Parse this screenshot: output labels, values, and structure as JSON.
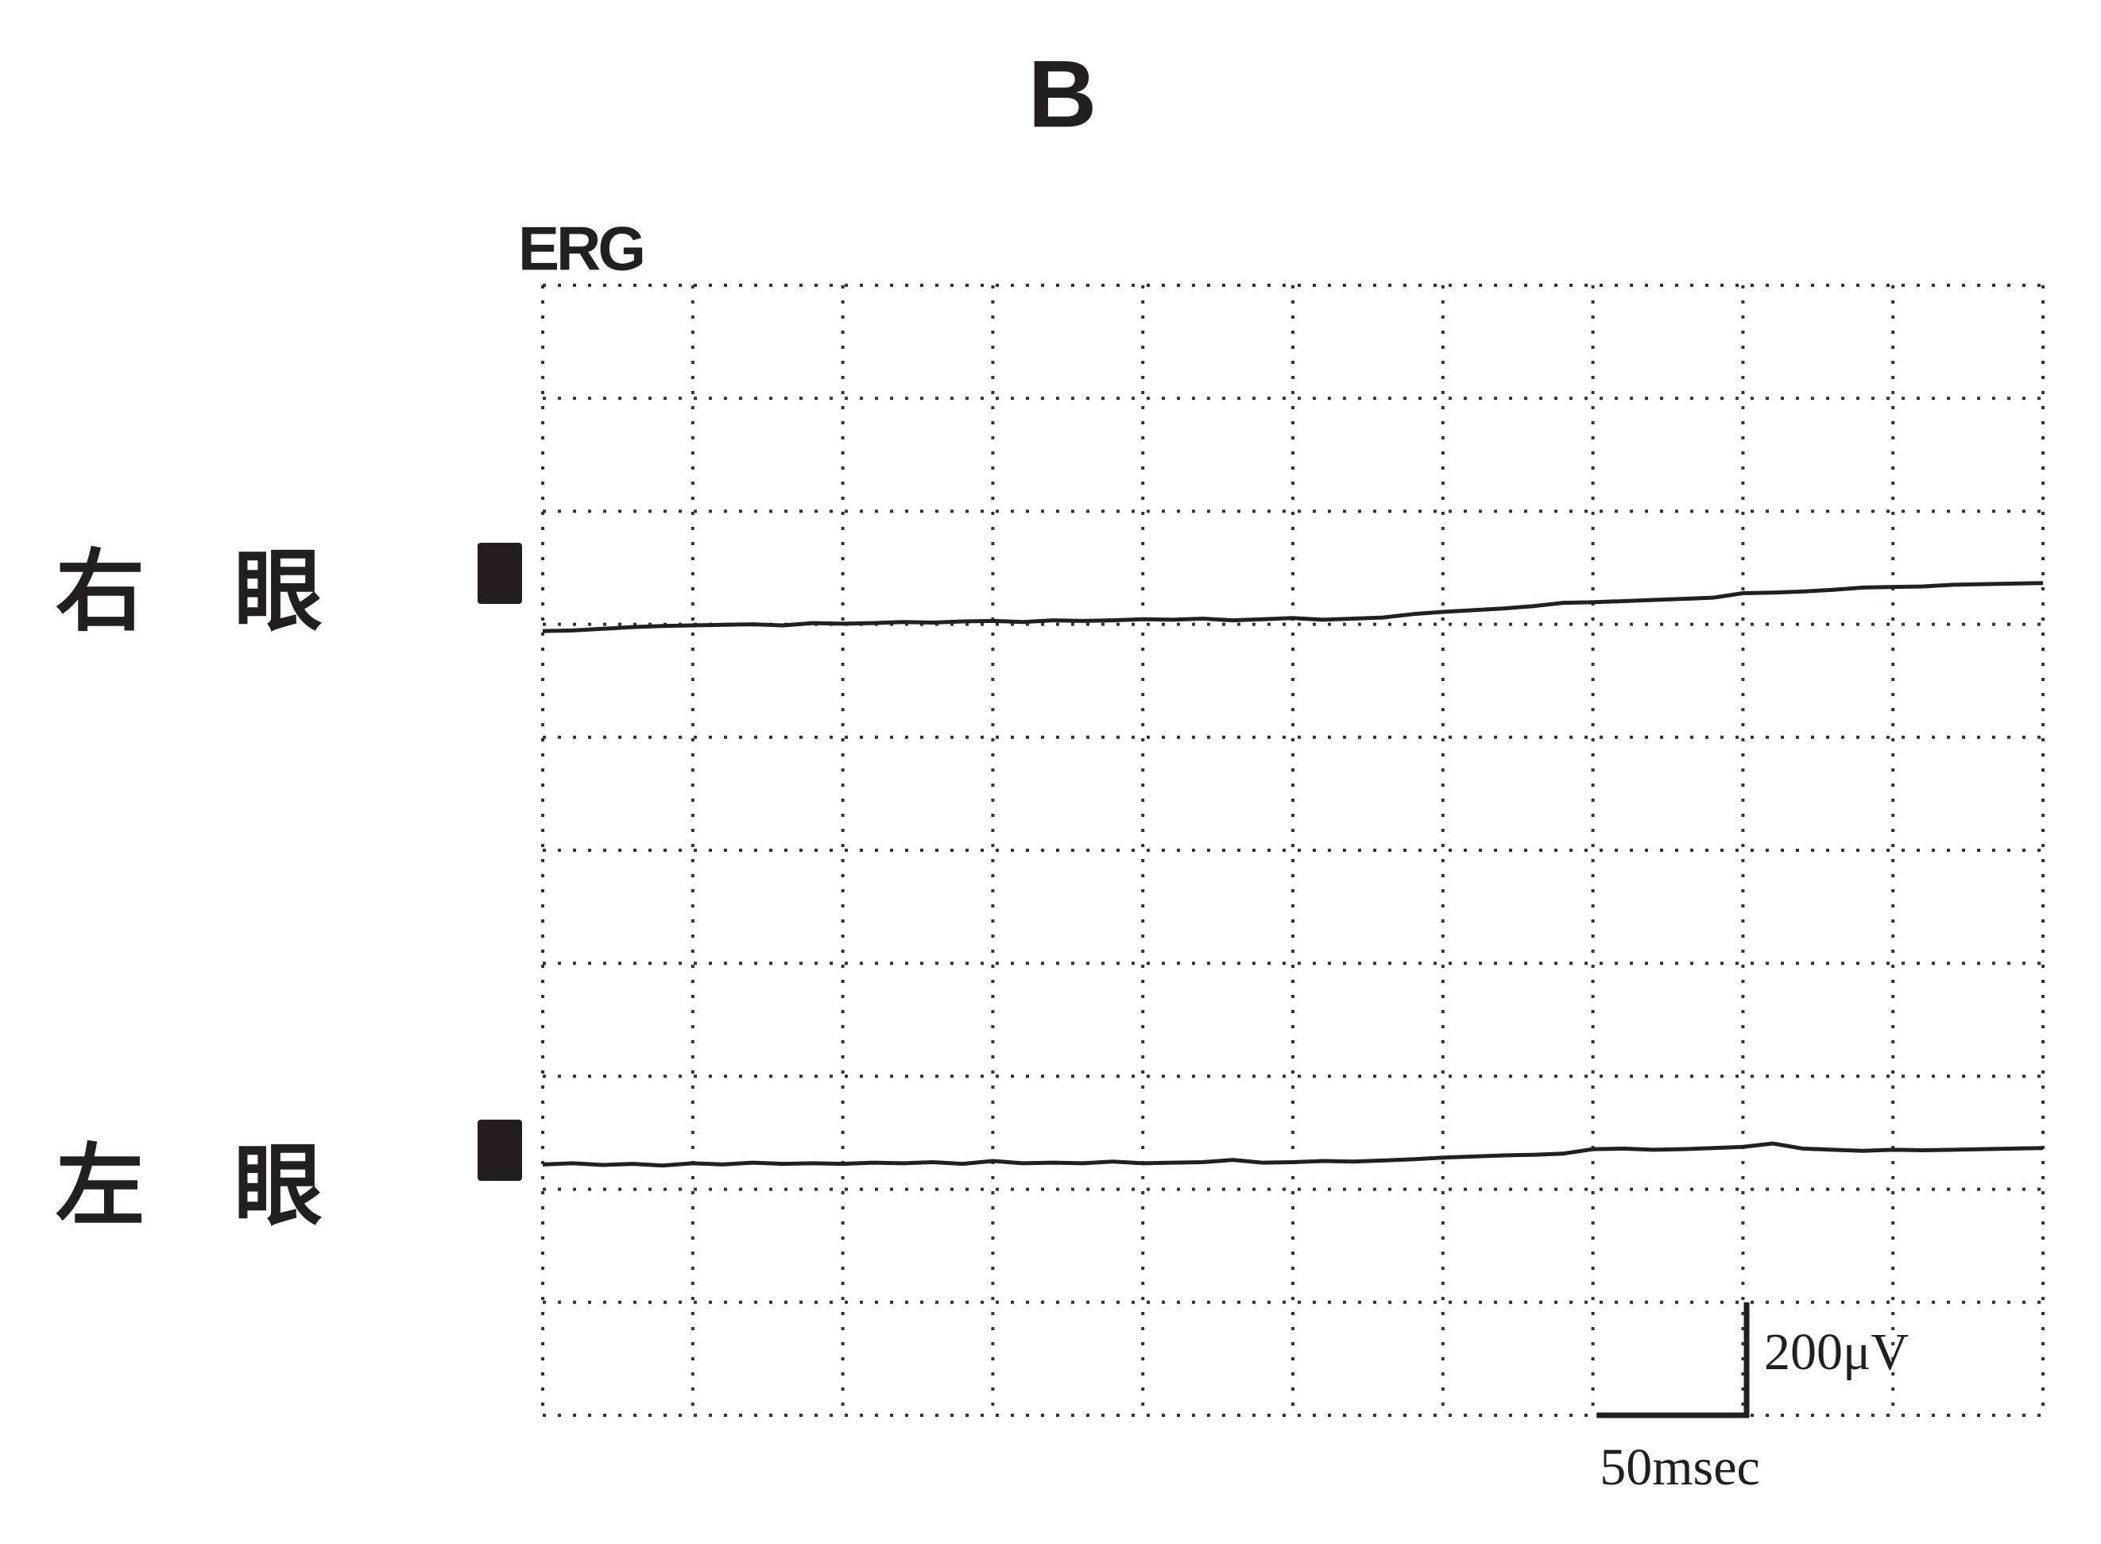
{
  "chart_data": {
    "type": "line",
    "title": "B",
    "subtitle": "ERG",
    "x": [
      0,
      10,
      20,
      30,
      40,
      50,
      60,
      70,
      80,
      90,
      100,
      110,
      120,
      130,
      140,
      150,
      160,
      170,
      180,
      190,
      200,
      210,
      220,
      230,
      240,
      250,
      260,
      270,
      280,
      290,
      300,
      310,
      320,
      330,
      340,
      350,
      360,
      370,
      380,
      390,
      400,
      410,
      420,
      430,
      440,
      450,
      460,
      470,
      480,
      490,
      500
    ],
    "series": [
      {
        "name": "右　眼",
        "color": "#231f20",
        "values": [
          1388,
          1389,
          1392,
          1395,
          1397,
          1398,
          1399,
          1400,
          1398,
          1402,
          1401,
          1402,
          1404,
          1403,
          1405,
          1406,
          1404,
          1407,
          1406,
          1407,
          1409,
          1408,
          1410,
          1407,
          1409,
          1411,
          1408,
          1410,
          1412,
          1418,
          1422,
          1425,
          1428,
          1432,
          1438,
          1439,
          1441,
          1443,
          1445,
          1447,
          1455,
          1456,
          1458,
          1461,
          1465,
          1466,
          1467,
          1470,
          1471,
          1472,
          1473
        ]
      },
      {
        "name": "左　眼",
        "color": "#231f20",
        "values": [
          444,
          446,
          443,
          445,
          442,
          446,
          444,
          447,
          445,
          446,
          445,
          447,
          446,
          448,
          445,
          450,
          446,
          447,
          446,
          449,
          446,
          447,
          448,
          452,
          447,
          448,
          450,
          449,
          451,
          453,
          456,
          458,
          460,
          461,
          463,
          471,
          472,
          470,
          471,
          473,
          475,
          481,
          472,
          470,
          468,
          470,
          469,
          470,
          471,
          472,
          473
        ]
      }
    ],
    "xlim": [
      0,
      500
    ],
    "ylim": [
      0,
      2000
    ],
    "xticks": [
      0,
      50,
      100,
      150,
      200,
      250,
      300,
      350,
      400,
      450,
      500
    ],
    "yticks": [
      0,
      200,
      400,
      600,
      800,
      1000,
      1200,
      1400,
      1600,
      1800,
      2000
    ],
    "grid": true,
    "scale_bar": {
      "x": 50,
      "y": 200,
      "x_label": "50msec",
      "y_label": "200μV"
    }
  }
}
